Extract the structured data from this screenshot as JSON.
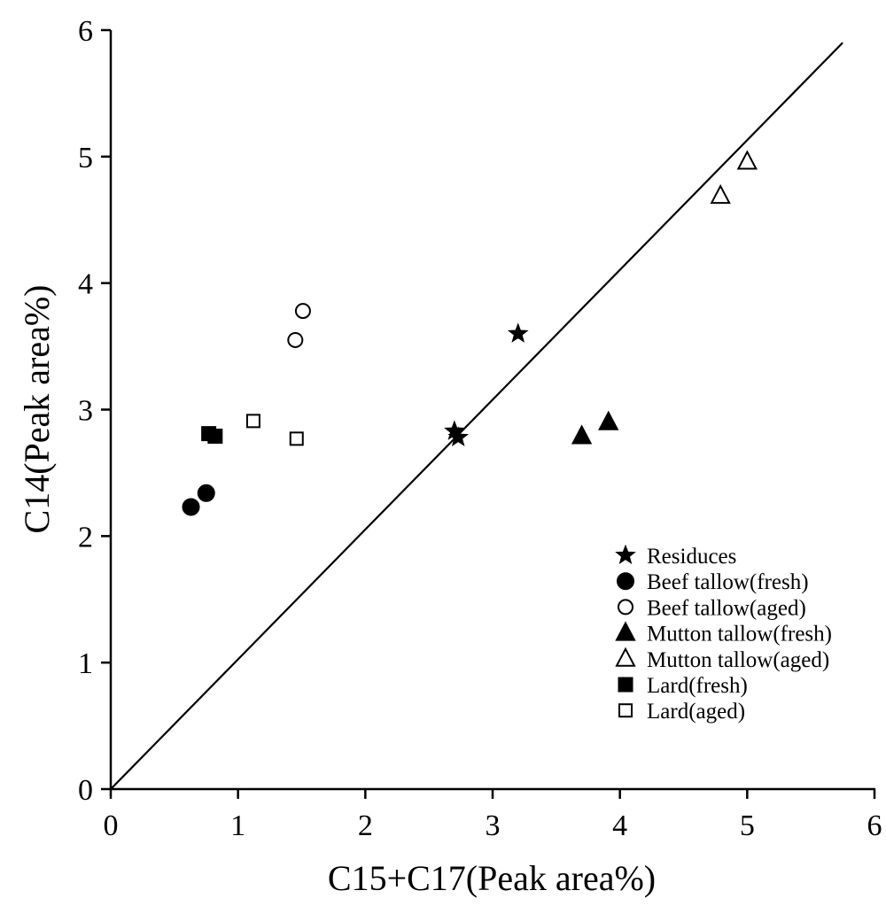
{
  "chart_data": {
    "type": "scatter",
    "title": "",
    "xlabel": "C15+C17(Peak area%)",
    "ylabel": "C14(Peak area%)",
    "xlim": [
      0,
      6
    ],
    "ylim": [
      0,
      6
    ],
    "xticks": [
      0,
      1,
      2,
      3,
      4,
      5,
      6
    ],
    "yticks": [
      0,
      1,
      2,
      3,
      4,
      5,
      6
    ],
    "grid": false,
    "legend_position": "bottom-right",
    "reference_line": {
      "from": [
        0,
        0
      ],
      "to": [
        5.75,
        5.9
      ]
    },
    "series": [
      {
        "name": "Residuces",
        "marker": "star",
        "filled": true,
        "points": [
          [
            3.2,
            3.6
          ],
          [
            2.7,
            2.83
          ],
          [
            2.73,
            2.78
          ]
        ]
      },
      {
        "name": "Beef tallow(fresh)",
        "marker": "circle",
        "filled": true,
        "points": [
          [
            0.63,
            2.23
          ],
          [
            0.75,
            2.34
          ]
        ]
      },
      {
        "name": "Beef tallow(aged)",
        "marker": "circle",
        "filled": false,
        "points": [
          [
            1.45,
            3.55
          ],
          [
            1.51,
            3.78
          ]
        ]
      },
      {
        "name": "Mutton tallow(fresh)",
        "marker": "triangle",
        "filled": true,
        "points": [
          [
            3.7,
            2.79
          ],
          [
            3.91,
            2.9
          ]
        ]
      },
      {
        "name": "Mutton tallow(aged)",
        "marker": "triangle",
        "filled": false,
        "points": [
          [
            4.79,
            4.69
          ],
          [
            5.0,
            4.96
          ]
        ]
      },
      {
        "name": "Lard(fresh)",
        "marker": "square",
        "filled": true,
        "points": [
          [
            0.77,
            2.81
          ],
          [
            0.82,
            2.79
          ]
        ]
      },
      {
        "name": "Lard(aged)",
        "marker": "square",
        "filled": false,
        "points": [
          [
            1.12,
            2.91
          ],
          [
            1.46,
            2.77
          ]
        ]
      }
    ]
  }
}
